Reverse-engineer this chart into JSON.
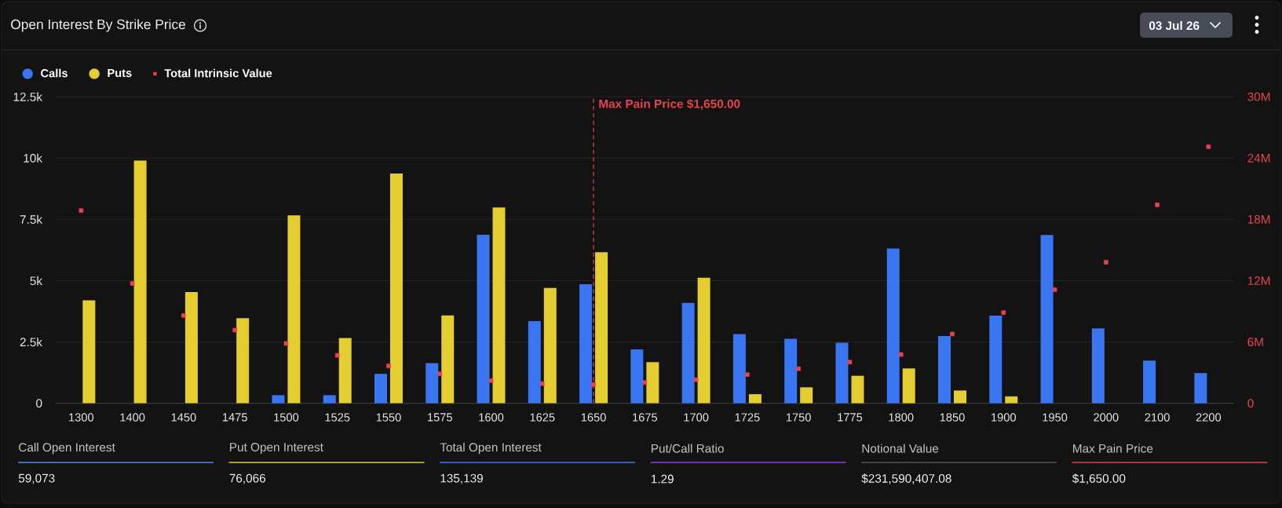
{
  "chart_data": {
    "type": "bar",
    "title": "Open Interest By Strike Price",
    "categories": [
      "1300",
      "1400",
      "1450",
      "1475",
      "1500",
      "1525",
      "1550",
      "1575",
      "1600",
      "1625",
      "1650",
      "1675",
      "1700",
      "1725",
      "1750",
      "1775",
      "1800",
      "1850",
      "1900",
      "1950",
      "2000",
      "2100",
      "2200"
    ],
    "series": [
      {
        "name": "Calls",
        "color": "#3a76f2",
        "values": [
          null,
          null,
          null,
          null,
          330,
          330,
          1200,
          1640,
          6870,
          3350,
          4850,
          2200,
          4090,
          2820,
          2630,
          2470,
          6310,
          2740,
          3570,
          6860,
          3050,
          1740,
          1230
        ]
      },
      {
        "name": "Puts",
        "color": "#e3cd30",
        "values": [
          4200,
          9900,
          4530,
          3470,
          7660,
          2660,
          9370,
          3580,
          7980,
          4700,
          6160,
          1680,
          5120,
          370,
          650,
          1120,
          1420,
          520,
          280,
          null,
          null,
          null,
          null
        ]
      },
      {
        "name": "Total Intrinsic Value",
        "type": "scatter",
        "axis": "y2",
        "marker": "square",
        "color": "#e8434f",
        "values": [
          18860000,
          11720000,
          8590000,
          7160000,
          5850000,
          4690000,
          3650000,
          2880000,
          2220000,
          1920000,
          1840000,
          2030000,
          2310000,
          2800000,
          3380000,
          4030000,
          4770000,
          6780000,
          8870000,
          11120000,
          13800000,
          19420000,
          25110000
        ]
      }
    ],
    "ylim": [
      0,
      12500
    ],
    "yticks": [
      0,
      {
        "value": 2500,
        "label": "2.5k"
      },
      {
        "value": 5000,
        "label": "5k"
      },
      {
        "value": 7500,
        "label": "7.5k"
      },
      {
        "value": 10000,
        "label": "10k"
      },
      {
        "value": 12500,
        "label": "12.5k"
      }
    ],
    "y2lim": [
      0,
      30000000
    ],
    "y2ticks": [
      0,
      {
        "value": 6000000,
        "label": "6M"
      },
      {
        "value": 12000000,
        "label": "12M"
      },
      {
        "value": 18000000,
        "label": "18M"
      },
      {
        "value": 24000000,
        "label": "24M"
      },
      {
        "value": 30000000,
        "label": "30M"
      }
    ],
    "grid": "y",
    "legend": "top left",
    "ref_lines": [
      {
        "axis": "x",
        "value": "1650",
        "label": "Max Pain Price $1,650.00",
        "color": "#e8434f",
        "line_style": "dashed"
      }
    ],
    "annotations": [
      "03 Jul 26",
      "Call Open Interest",
      "59,073",
      "Put Open Interest",
      "76,066",
      "Total Open Interest",
      "135,139",
      "Put/Call Ratio",
      "1.29",
      "Notional Value",
      "$231,590,407.08",
      "Max Pain Price",
      "$1,650.00"
    ]
  }
}
